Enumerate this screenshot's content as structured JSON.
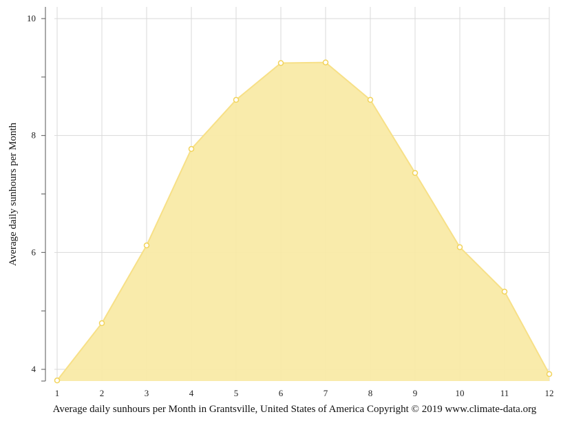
{
  "chart_data": {
    "type": "area",
    "x": [
      1,
      2,
      3,
      4,
      5,
      6,
      7,
      8,
      9,
      10,
      11,
      12
    ],
    "series": [
      {
        "values": [
          3.81,
          4.79,
          6.12,
          7.77,
          8.61,
          9.24,
          9.25,
          8.61,
          7.36,
          6.09,
          5.33,
          3.92
        ]
      }
    ],
    "ylabel": "Average daily sunhours per Month",
    "xlabel": "Average daily sunhours per Month in Grantsville, United States of America Copyright © 2019 www.climate-data.org",
    "xlim": [
      1,
      12
    ],
    "ylim": [
      3.8,
      10.2
    ],
    "x_ticks": [
      "1",
      "2",
      "3",
      "4",
      "5",
      "6",
      "7",
      "8",
      "9",
      "10",
      "11",
      "12"
    ],
    "y_ticks": [
      "4",
      "6",
      "8",
      "10"
    ],
    "grid": true,
    "colors": {
      "fill": "#f9eaa7",
      "line": "#f7e087",
      "marker_fill": "#ffffff",
      "marker_stroke": "#f2d35a",
      "grid": "#d9d9d9",
      "axis": "#555555"
    }
  }
}
